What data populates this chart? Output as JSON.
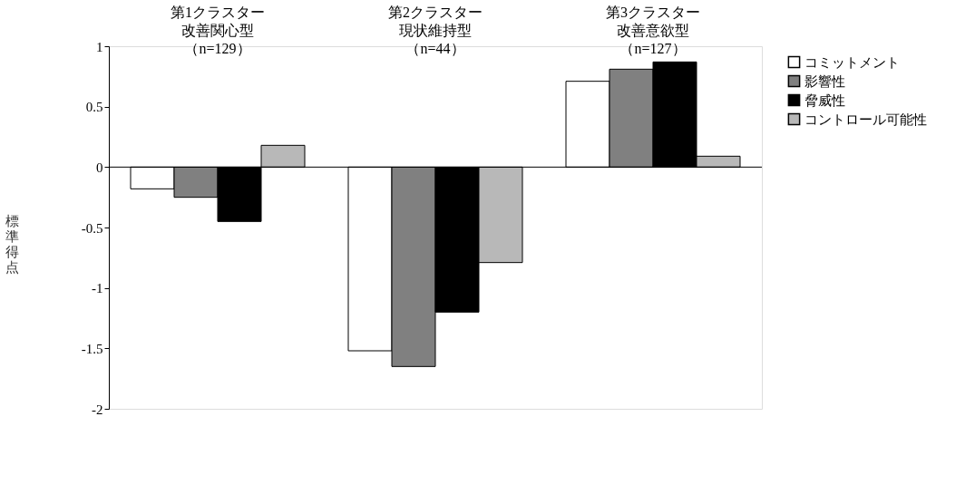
{
  "chart_data": {
    "type": "bar",
    "ylabel": "標準得点",
    "categories": [
      "第1クラスター改善関心型（n=129）",
      "第2クラスター現状維持型（n=44）",
      "第3クラスター改善意欲型（n=127）"
    ],
    "series": [
      {
        "name": "コミットメント",
        "color": "#ffffff",
        "values": [
          -0.18,
          -1.52,
          0.71
        ]
      },
      {
        "name": "影響性",
        "color": "#808080",
        "values": [
          -0.25,
          -1.65,
          0.81
        ]
      },
      {
        "name": "脅威性",
        "color": "#000000",
        "values": [
          -0.45,
          -1.2,
          0.87
        ]
      },
      {
        "name": "コントロール可能性",
        "color": "#b8b8b8",
        "values": [
          0.18,
          -0.79,
          0.09
        ]
      }
    ],
    "ylim": [
      -2,
      1
    ],
    "yticks": [
      -2,
      -1.5,
      -1,
      -0.5,
      0,
      0.5,
      1
    ],
    "legend": "right"
  }
}
